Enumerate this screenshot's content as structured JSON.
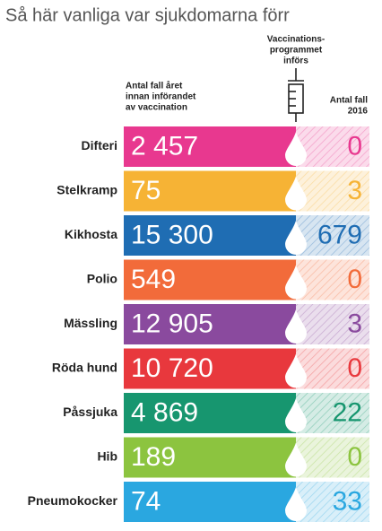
{
  "title": "Så här vanliga var sjukdomarna förr",
  "header": {
    "vaccination_label": [
      "Vaccinations-",
      "programmet",
      "införs"
    ],
    "before_label": [
      "Antal fall året",
      "innan införandet",
      "av vaccination"
    ],
    "after_label": [
      "Antal fall",
      "2016"
    ]
  },
  "rows": [
    {
      "disease": "Difteri",
      "before": "2 457",
      "after": "0",
      "color": "#e8388f"
    },
    {
      "disease": "Stelkramp",
      "before": "75",
      "after": "3",
      "color": "#f6b335"
    },
    {
      "disease": "Kikhosta",
      "before": "15 300",
      "after": "679",
      "color": "#1f6db3"
    },
    {
      "disease": "Polio",
      "before": "549",
      "after": "0",
      "color": "#f26b3a"
    },
    {
      "disease": "Mässling",
      "before": "12 905",
      "after": "3",
      "color": "#8a4a9e"
    },
    {
      "disease": "Röda hund",
      "before": "10 720",
      "after": "0",
      "color": "#e8383d"
    },
    {
      "disease": "Påssjuka",
      "before": "4 869",
      "after": "22",
      "color": "#17966f"
    },
    {
      "disease": "Hib",
      "before": "189",
      "after": "0",
      "color": "#8cc43f"
    },
    {
      "disease": "Pneumokocker",
      "before": "74",
      "after": "33",
      "color": "#2aa7e0"
    }
  ]
}
